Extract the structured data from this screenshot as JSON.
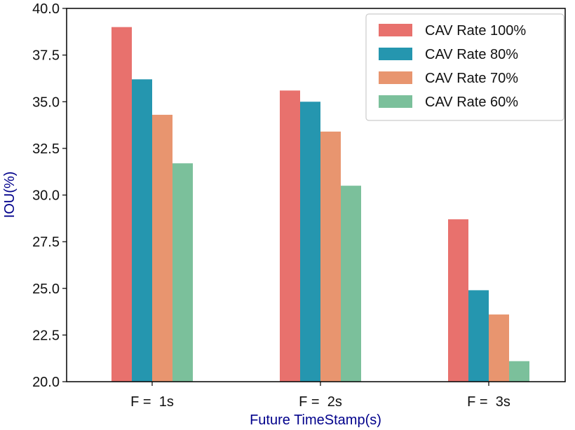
{
  "chart_data": {
    "type": "bar",
    "title": "",
    "xlabel": "Future TimeStamp(s)",
    "ylabel": "IOU(%)",
    "categories": [
      "F =  1s",
      "F =  2s",
      "F =  3s"
    ],
    "ylim": [
      20.0,
      40.0
    ],
    "yticks": [
      "20.0",
      "22.5",
      "25.0",
      "27.5",
      "30.0",
      "32.5",
      "35.0",
      "37.5",
      "40.0"
    ],
    "grid": false,
    "legend_position": "top-right",
    "axis_label_color": "#00008b",
    "series": [
      {
        "name": "CAV Rate 100%",
        "color": "#e8716d",
        "values": [
          39.0,
          35.6,
          28.7
        ]
      },
      {
        "name": "CAV Rate 80%",
        "color": "#2596af",
        "values": [
          36.2,
          35.0,
          24.9
        ]
      },
      {
        "name": "CAV Rate 70%",
        "color": "#e8956f",
        "values": [
          34.3,
          33.4,
          23.6
        ]
      },
      {
        "name": "CAV Rate 60%",
        "color": "#7bc09b",
        "values": [
          31.7,
          30.5,
          21.1
        ]
      }
    ]
  }
}
